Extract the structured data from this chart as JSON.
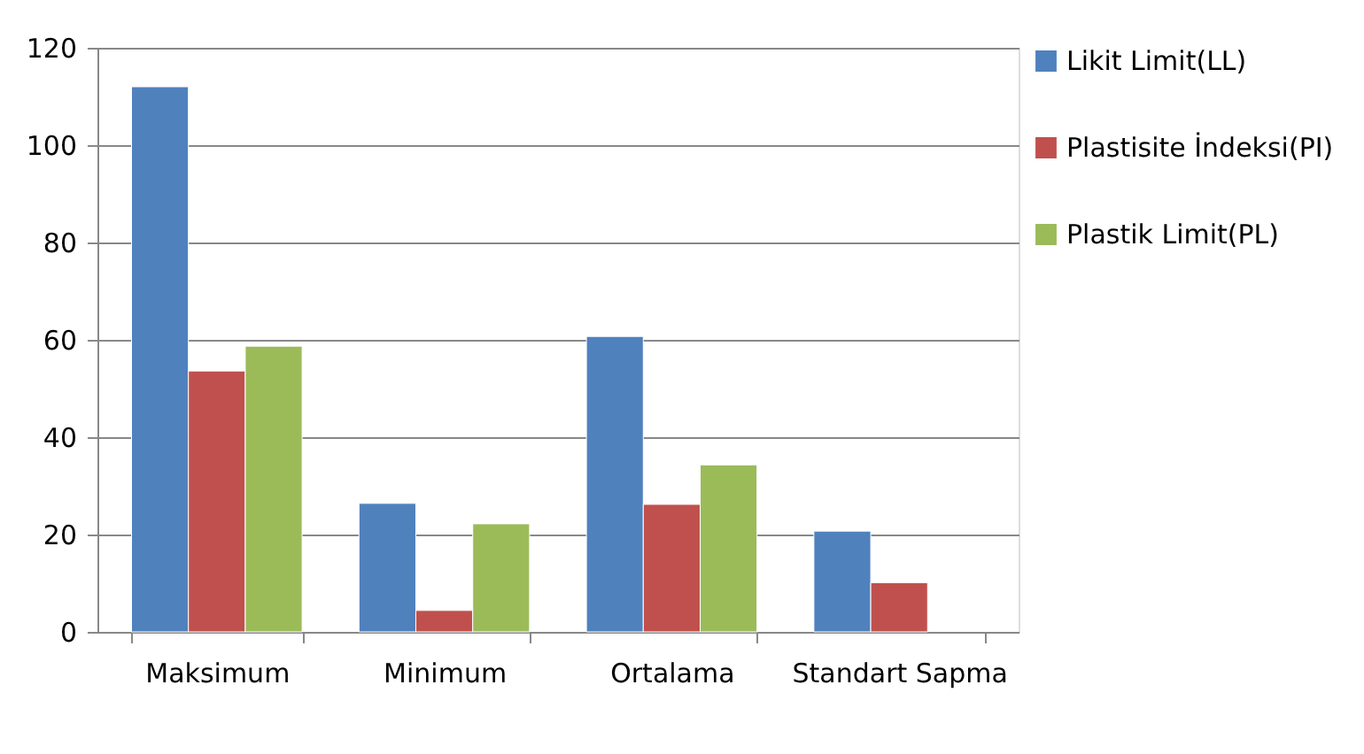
{
  "chart_data": {
    "type": "bar",
    "categories": [
      "Maksimum",
      "Minimum",
      "Ortalama",
      "Standart Sapma"
    ],
    "series": [
      {
        "name": "Likit Limit(LL)",
        "color": "#4f81bd",
        "values": [
          112,
          26.4,
          60.7,
          20.7
        ]
      },
      {
        "name": "Plastisite İndeksi(PI)",
        "color": "#c0504d",
        "values": [
          53.6,
          4.4,
          26.2,
          10.1
        ]
      },
      {
        "name": "Plastik Limit(PL)",
        "color": "#9bbb59",
        "values": [
          58.7,
          22.2,
          34.3,
          null
        ]
      }
    ],
    "ylim": [
      0,
      120
    ],
    "yticks": [
      0,
      20,
      40,
      60,
      80,
      100,
      120
    ],
    "grid": "y",
    "legend": "right"
  }
}
